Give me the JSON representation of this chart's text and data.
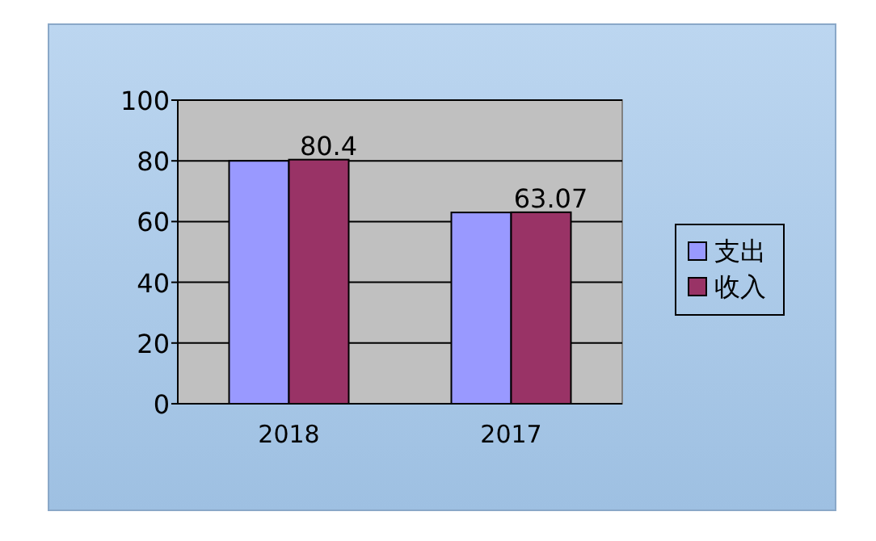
{
  "chart_data": {
    "type": "bar",
    "categories": [
      "2018",
      "2017"
    ],
    "series": [
      {
        "name": "支出",
        "color": "#9999ff",
        "values": [
          80,
          63
        ]
      },
      {
        "name": "收入",
        "color": "#993366",
        "values": [
          80.4,
          63.07
        ],
        "value_labels": [
          "80.4",
          "63.07"
        ]
      }
    ],
    "ylim": [
      0,
      100
    ],
    "yticks": [
      0,
      20,
      40,
      60,
      80,
      100
    ],
    "grid": "y",
    "legend": "right"
  }
}
